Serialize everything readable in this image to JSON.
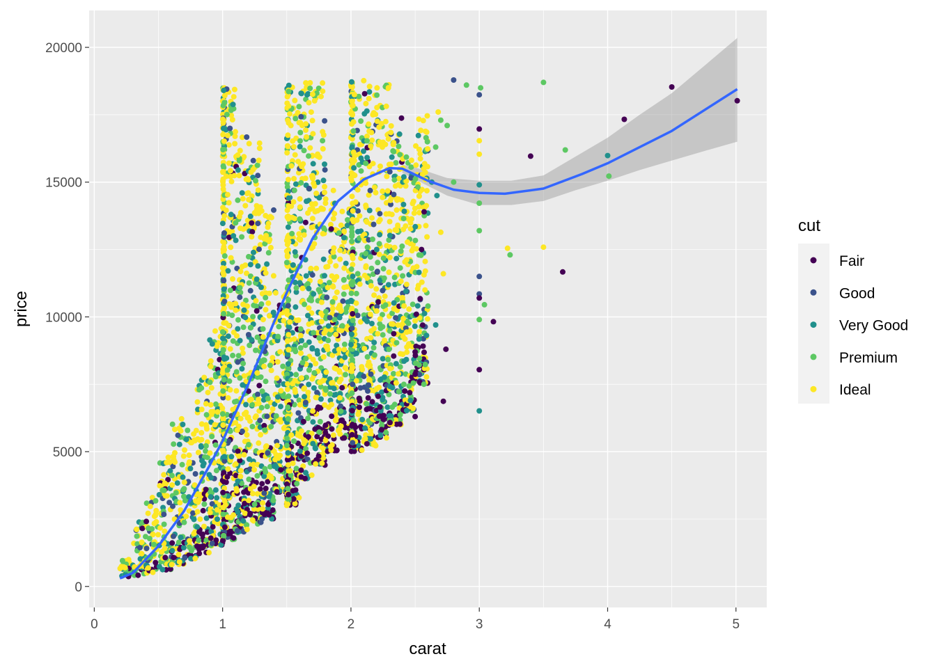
{
  "chart_data": {
    "type": "scatter",
    "title": "",
    "xlabel": "carat",
    "ylabel": "price",
    "xlim": [
      -0.04,
      5.24
    ],
    "ylim": [
      -780,
      21370
    ],
    "xticks": [
      0,
      1,
      2,
      3,
      4,
      5
    ],
    "xtick_labels": [
      "0",
      "1",
      "2",
      "3",
      "4",
      "5"
    ],
    "yticks": [
      0,
      5000,
      10000,
      15000,
      20000
    ],
    "ytick_labels": [
      "0",
      "5000",
      "10000",
      "15000",
      "20000"
    ],
    "grid": true,
    "legend": {
      "title": "cut",
      "placement": "right",
      "entries": [
        "Fair",
        "Good",
        "Very Good",
        "Premium",
        "Ideal"
      ],
      "colors": [
        "#440154",
        "#3B528B",
        "#21908C",
        "#5DC863",
        "#FDE725"
      ]
    },
    "price_range_by_carat": [
      [
        0.2,
        330,
        1000
      ],
      [
        0.3,
        400,
        2400
      ],
      [
        0.4,
        500,
        3500
      ],
      [
        0.5,
        600,
        4800
      ],
      [
        0.6,
        800,
        6500
      ],
      [
        0.7,
        1000,
        6000
      ],
      [
        0.8,
        1200,
        7800
      ],
      [
        0.9,
        1500,
        9600
      ],
      [
        1.0,
        1700,
        18500
      ],
      [
        1.1,
        2000,
        17000
      ],
      [
        1.2,
        2300,
        16500
      ],
      [
        1.3,
        2500,
        14000
      ],
      [
        1.4,
        3500,
        11000
      ],
      [
        1.5,
        3000,
        18700
      ],
      [
        1.6,
        4000,
        18700
      ],
      [
        1.7,
        4500,
        18800
      ],
      [
        1.8,
        5000,
        15000
      ],
      [
        1.9,
        5500,
        14000
      ],
      [
        2.0,
        5000,
        18800
      ],
      [
        2.1,
        5200,
        18700
      ],
      [
        2.2,
        5500,
        18700
      ],
      [
        2.3,
        6000,
        17500
      ],
      [
        2.4,
        6500,
        16000
      ],
      [
        2.5,
        7500,
        17500
      ]
    ],
    "outlier_points": [
      [
        5.01,
        18018,
        0
      ],
      [
        4.5,
        18531,
        0
      ],
      [
        4.13,
        17329,
        0
      ],
      [
        4.01,
        15223,
        3
      ],
      [
        4.0,
        15984,
        2
      ],
      [
        3.67,
        16193,
        3
      ],
      [
        3.65,
        11668,
        0
      ],
      [
        3.5,
        18701,
        3
      ],
      [
        3.4,
        15964,
        0
      ],
      [
        3.24,
        12300,
        3
      ],
      [
        3.22,
        12545,
        4
      ],
      [
        3.5,
        12587,
        4
      ],
      [
        3.11,
        9823,
        0
      ],
      [
        3.04,
        10453,
        3
      ],
      [
        3.01,
        18500,
        3
      ],
      [
        3.0,
        18242,
        1
      ],
      [
        3.0,
        16970,
        0
      ],
      [
        3.0,
        16538,
        4
      ],
      [
        3.0,
        16037,
        4
      ],
      [
        3.0,
        14900,
        2
      ],
      [
        3.0,
        14220,
        3
      ],
      [
        3.0,
        13200,
        3
      ],
      [
        3.0,
        11500,
        1
      ],
      [
        3.0,
        10850,
        1
      ],
      [
        3.0,
        10700,
        0
      ],
      [
        3.0,
        9900,
        3
      ],
      [
        3.0,
        8040,
        0
      ],
      [
        3.0,
        6512,
        2
      ],
      [
        2.8,
        18788,
        1
      ],
      [
        2.75,
        17100,
        3
      ],
      [
        2.72,
        6870,
        0
      ],
      [
        2.74,
        8800,
        0
      ],
      [
        2.7,
        13140,
        4
      ],
      [
        2.66,
        9700,
        2
      ],
      [
        2.6,
        10400,
        3
      ],
      [
        2.5,
        6300,
        0
      ],
      [
        2.5,
        7870,
        0
      ],
      [
        2.5,
        8700,
        0
      ],
      [
        2.51,
        10100,
        0
      ],
      [
        2.55,
        12500,
        0
      ],
      [
        2.67,
        14500,
        2
      ],
      [
        2.63,
        15000,
        2
      ],
      [
        2.72,
        11600,
        4
      ],
      [
        2.66,
        16300,
        3
      ],
      [
        2.7,
        17300,
        3
      ],
      [
        2.68,
        17600,
        4
      ],
      [
        2.8,
        15000,
        3
      ],
      [
        2.9,
        18600,
        3
      ],
      [
        2.57,
        13900,
        0
      ],
      [
        2.58,
        11700,
        4
      ],
      [
        2.45,
        9000,
        4
      ]
    ],
    "smooth": {
      "method": "gam",
      "color": "#3366FF",
      "points": [
        [
          0.2,
          300
        ],
        [
          0.3,
          500
        ],
        [
          0.5,
          1500
        ],
        [
          0.7,
          2800
        ],
        [
          0.9,
          4500
        ],
        [
          1.0,
          5400
        ],
        [
          1.2,
          7500
        ],
        [
          1.4,
          9800
        ],
        [
          1.5,
          10900
        ],
        [
          1.7,
          12900
        ],
        [
          1.9,
          14300
        ],
        [
          2.1,
          15100
        ],
        [
          2.3,
          15520
        ],
        [
          2.4,
          15500
        ],
        [
          2.6,
          15050
        ],
        [
          2.8,
          14720
        ],
        [
          3.0,
          14600
        ],
        [
          3.2,
          14570
        ],
        [
          3.5,
          14760
        ],
        [
          3.8,
          15300
        ],
        [
          4.0,
          15700
        ],
        [
          4.5,
          16900
        ],
        [
          5.01,
          18450
        ]
      ],
      "ci_band": [
        [
          2.4,
          15350,
          15650
        ],
        [
          2.5,
          15100,
          15550
        ],
        [
          2.75,
          14500,
          15150
        ],
        [
          3.0,
          14150,
          15050
        ],
        [
          3.25,
          14150,
          15050
        ],
        [
          3.5,
          14300,
          15250
        ],
        [
          3.75,
          14700,
          15950
        ],
        [
          4.0,
          15050,
          16650
        ],
        [
          4.25,
          15450,
          17500
        ],
        [
          4.5,
          15800,
          18300
        ],
        [
          4.75,
          16150,
          19300
        ],
        [
          5.01,
          16500,
          20350
        ]
      ]
    }
  }
}
